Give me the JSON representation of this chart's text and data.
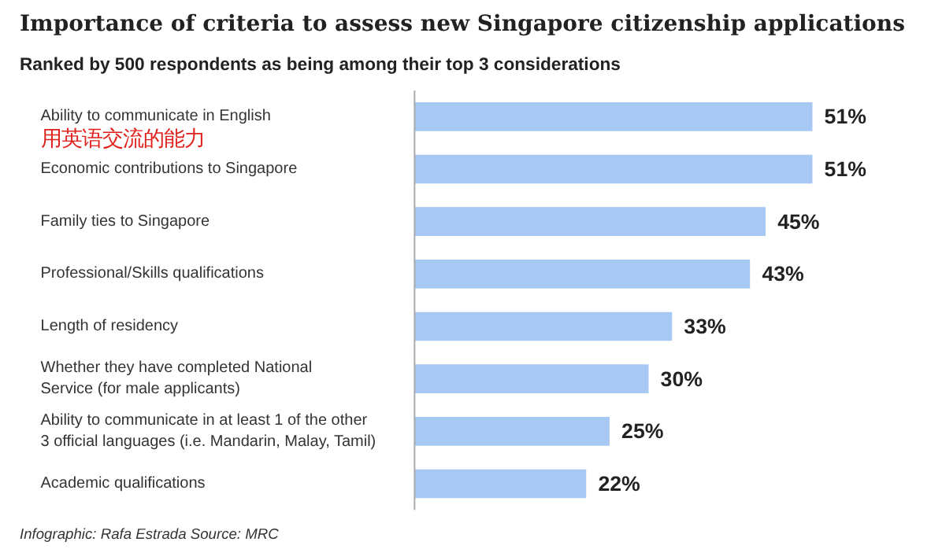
{
  "chart_data": {
    "type": "bar",
    "orientation": "horizontal",
    "title": "Importance of criteria to assess new Singapore citizenship applications",
    "subtitle": "Ranked by 500 respondents as being among their top 3 considerations",
    "categories": [
      "Ability to communicate in English",
      "Economic contributions to Singapore",
      "Family ties to Singapore",
      "Professional/Skills qualifications",
      "Length of residency",
      "Whether they have completed National\nService (for male applicants)",
      "Ability to communicate in at least 1 of the other\n3 official languages (i.e. Mandarin, Malay, Tamil)",
      "Academic qualifications"
    ],
    "values": [
      51,
      51,
      45,
      43,
      33,
      30,
      25,
      22
    ],
    "color": "#a6c8f2",
    "value_labels": [
      "51%",
      "51%",
      "45%",
      "43%",
      "33%",
      "30%",
      "25%",
      "22%"
    ],
    "annotations": [
      "用英语交流的能力",
      "Infographic: Rafa Estrada   Source: MRC"
    ]
  }
}
